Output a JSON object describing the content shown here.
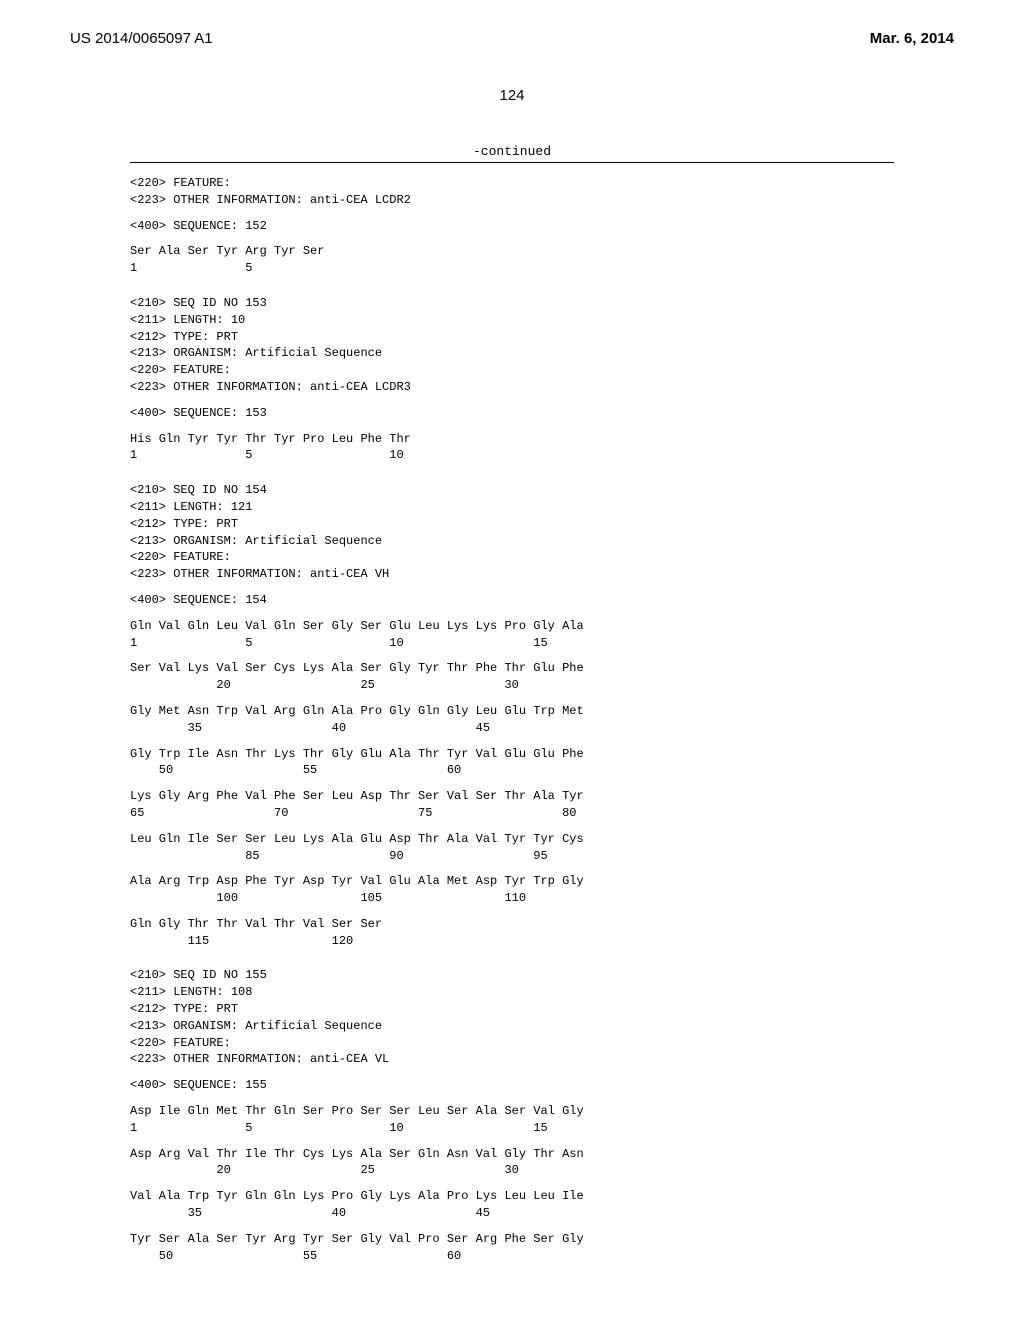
{
  "header": {
    "pub_number": "US 2014/0065097 A1",
    "pub_date": "Mar. 6, 2014"
  },
  "page_number": "124",
  "continued_label": "-continued",
  "blocks": [
    {
      "type": "meta",
      "lines": [
        "<220> FEATURE:",
        "<223> OTHER INFORMATION: anti-CEA LCDR2"
      ]
    },
    {
      "type": "meta",
      "lines": [
        "<400> SEQUENCE: 152"
      ]
    },
    {
      "type": "seq",
      "lines": [
        "Ser Ala Ser Tyr Arg Tyr Ser",
        "1               5"
      ]
    },
    {
      "type": "meta",
      "lines": [
        "<210> SEQ ID NO 153",
        "<211> LENGTH: 10",
        "<212> TYPE: PRT",
        "<213> ORGANISM: Artificial Sequence",
        "<220> FEATURE:",
        "<223> OTHER INFORMATION: anti-CEA LCDR3"
      ]
    },
    {
      "type": "meta",
      "lines": [
        "<400> SEQUENCE: 153"
      ]
    },
    {
      "type": "seq",
      "lines": [
        "His Gln Tyr Tyr Thr Tyr Pro Leu Phe Thr",
        "1               5                   10"
      ]
    },
    {
      "type": "meta",
      "lines": [
        "<210> SEQ ID NO 154",
        "<211> LENGTH: 121",
        "<212> TYPE: PRT",
        "<213> ORGANISM: Artificial Sequence",
        "<220> FEATURE:",
        "<223> OTHER INFORMATION: anti-CEA VH"
      ]
    },
    {
      "type": "meta",
      "lines": [
        "<400> SEQUENCE: 154"
      ]
    },
    {
      "type": "seq",
      "lines": [
        "Gln Val Gln Leu Val Gln Ser Gly Ser Glu Leu Lys Lys Pro Gly Ala",
        "1               5                   10                  15"
      ]
    },
    {
      "type": "seq",
      "lines": [
        "Ser Val Lys Val Ser Cys Lys Ala Ser Gly Tyr Thr Phe Thr Glu Phe",
        "            20                  25                  30"
      ]
    },
    {
      "type": "seq",
      "lines": [
        "Gly Met Asn Trp Val Arg Gln Ala Pro Gly Gln Gly Leu Glu Trp Met",
        "        35                  40                  45"
      ]
    },
    {
      "type": "seq",
      "lines": [
        "Gly Trp Ile Asn Thr Lys Thr Gly Glu Ala Thr Tyr Val Glu Glu Phe",
        "    50                  55                  60"
      ]
    },
    {
      "type": "seq",
      "lines": [
        "Lys Gly Arg Phe Val Phe Ser Leu Asp Thr Ser Val Ser Thr Ala Tyr",
        "65                  70                  75                  80"
      ]
    },
    {
      "type": "seq",
      "lines": [
        "Leu Gln Ile Ser Ser Leu Lys Ala Glu Asp Thr Ala Val Tyr Tyr Cys",
        "                85                  90                  95"
      ]
    },
    {
      "type": "seq",
      "lines": [
        "Ala Arg Trp Asp Phe Tyr Asp Tyr Val Glu Ala Met Asp Tyr Trp Gly",
        "            100                 105                 110"
      ]
    },
    {
      "type": "seq",
      "lines": [
        "Gln Gly Thr Thr Val Thr Val Ser Ser",
        "        115                 120"
      ]
    },
    {
      "type": "meta",
      "lines": [
        "<210> SEQ ID NO 155",
        "<211> LENGTH: 108",
        "<212> TYPE: PRT",
        "<213> ORGANISM: Artificial Sequence",
        "<220> FEATURE:",
        "<223> OTHER INFORMATION: anti-CEA VL"
      ]
    },
    {
      "type": "meta",
      "lines": [
        "<400> SEQUENCE: 155"
      ]
    },
    {
      "type": "seq",
      "lines": [
        "Asp Ile Gln Met Thr Gln Ser Pro Ser Ser Leu Ser Ala Ser Val Gly",
        "1               5                   10                  15"
      ]
    },
    {
      "type": "seq",
      "lines": [
        "Asp Arg Val Thr Ile Thr Cys Lys Ala Ser Gln Asn Val Gly Thr Asn",
        "            20                  25                  30"
      ]
    },
    {
      "type": "seq",
      "lines": [
        "Val Ala Trp Tyr Gln Gln Lys Pro Gly Lys Ala Pro Lys Leu Leu Ile",
        "        35                  40                  45"
      ]
    },
    {
      "type": "seq",
      "lines": [
        "Tyr Ser Ala Ser Tyr Arg Tyr Ser Gly Val Pro Ser Arg Phe Ser Gly",
        "    50                  55                  60"
      ]
    }
  ]
}
